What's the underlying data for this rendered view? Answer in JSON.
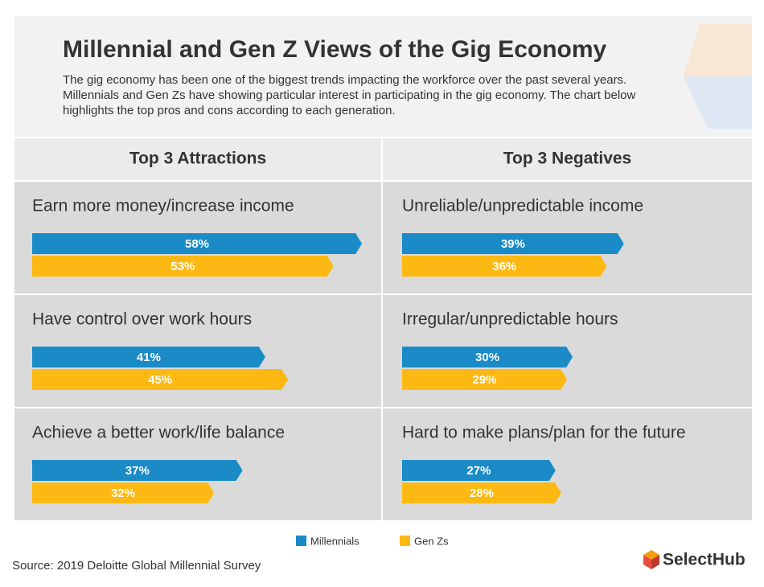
{
  "title": "Millennial and Gen Z Views of the Gig Economy",
  "subtitle": "The gig economy has been one of the biggest trends impacting the workforce over the past several years. Millennials and Gen Zs have showing particular interest in participating in the gig economy. The chart below highlights the top pros and cons according to each generation.",
  "chart_data": [
    {
      "type": "bar",
      "title": "Top 3 Attractions",
      "categories": [
        "Earn more money/increase income",
        "Have control over work hours",
        "Achieve a better work/life balance"
      ],
      "series": [
        {
          "name": "Millennials",
          "color": "#1a8bc7",
          "values": [
            58,
            41,
            37
          ],
          "value_labels": [
            "58%",
            "41%",
            "37%"
          ]
        },
        {
          "name": "Gen Zs",
          "color": "#fdb913",
          "values": [
            53,
            45,
            32
          ],
          "value_labels": [
            "53%",
            "45%",
            "32%"
          ]
        }
      ]
    },
    {
      "type": "bar",
      "title": "Top 3 Negatives",
      "categories": [
        "Unreliable/unpredictable income",
        "Irregular/unpredictable hours",
        "Hard to make plans/plan for the future"
      ],
      "series": [
        {
          "name": "Millennials",
          "color": "#1a8bc7",
          "values": [
            39,
            30,
            27
          ],
          "value_labels": [
            "39%",
            "30%",
            "27%"
          ]
        },
        {
          "name": "Gen Zs",
          "color": "#fdb913",
          "values": [
            36,
            29,
            28
          ],
          "value_labels": [
            "36%",
            "29%",
            "28%"
          ]
        }
      ]
    }
  ],
  "source": "Source: 2019 Deloitte Global Millennial Survey",
  "logo": "SelectHub"
}
